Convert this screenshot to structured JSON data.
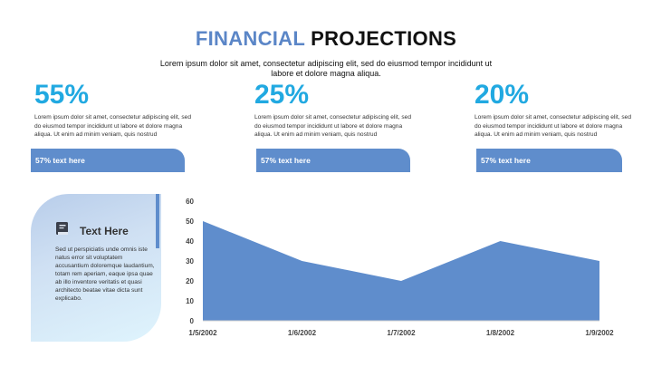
{
  "header": {
    "title_part1": "FINANCIAL",
    "title_part2": "PROJECTIONS",
    "subtitle": "Lorem ipsum dolor sit amet, consectetur adipiscing elit, sed do eiusmod tempor incididunt ut labore et dolore magna aliqua."
  },
  "stats": [
    {
      "percent": "55%",
      "description": "Lorem ipsum dolor sit amet, consectetur adipiscing elit, sed do eiusmod tempor incididunt ut labore et dolore magna aliqua. Ut enim ad minim veniam, quis nostrud",
      "tab_label": "57% text here"
    },
    {
      "percent": "25%",
      "description": "Lorem ipsum dolor sit amet, consectetur adipiscing elit, sed do eiusmod tempor incididunt ut labore et dolore magna aliqua. Ut enim ad minim veniam, quis nostrud",
      "tab_label": "57% text here"
    },
    {
      "percent": "20%",
      "description": "Lorem ipsum dolor sit amet, consectetur adipiscing elit, sed do eiusmod tempor incididunt ut labore et dolore magna aliqua. Ut enim ad minim veniam, quis nostrud",
      "tab_label": "57% text here"
    }
  ],
  "card": {
    "icon": "book-icon",
    "heading": "Text Here",
    "body": "Sed ut perspiciatis unde omnis iste natus error sit voluptatem accusantium doloremque laudantium, totam rem aperiam, eaque ipsa quae ab illo inventore veritatis et quasi architecto beatae vitae dicta sunt explicabo."
  },
  "colors": {
    "accent_blue": "#5f8dcc",
    "percent_cyan": "#21a9e1",
    "title_blue": "#5b86c7"
  },
  "chart_data": {
    "type": "area",
    "categories": [
      "1/5/2002",
      "1/6/2002",
      "1/7/2002",
      "1/8/2002",
      "1/9/2002"
    ],
    "values": [
      50,
      30,
      20,
      40,
      30
    ],
    "title": "",
    "xlabel": "",
    "ylabel": "",
    "ylim": [
      0,
      60
    ],
    "yticks": [
      "0",
      "10",
      "20",
      "30",
      "40",
      "50",
      "60"
    ],
    "color": "#5f8dcc",
    "grid": false,
    "legend": "none"
  }
}
